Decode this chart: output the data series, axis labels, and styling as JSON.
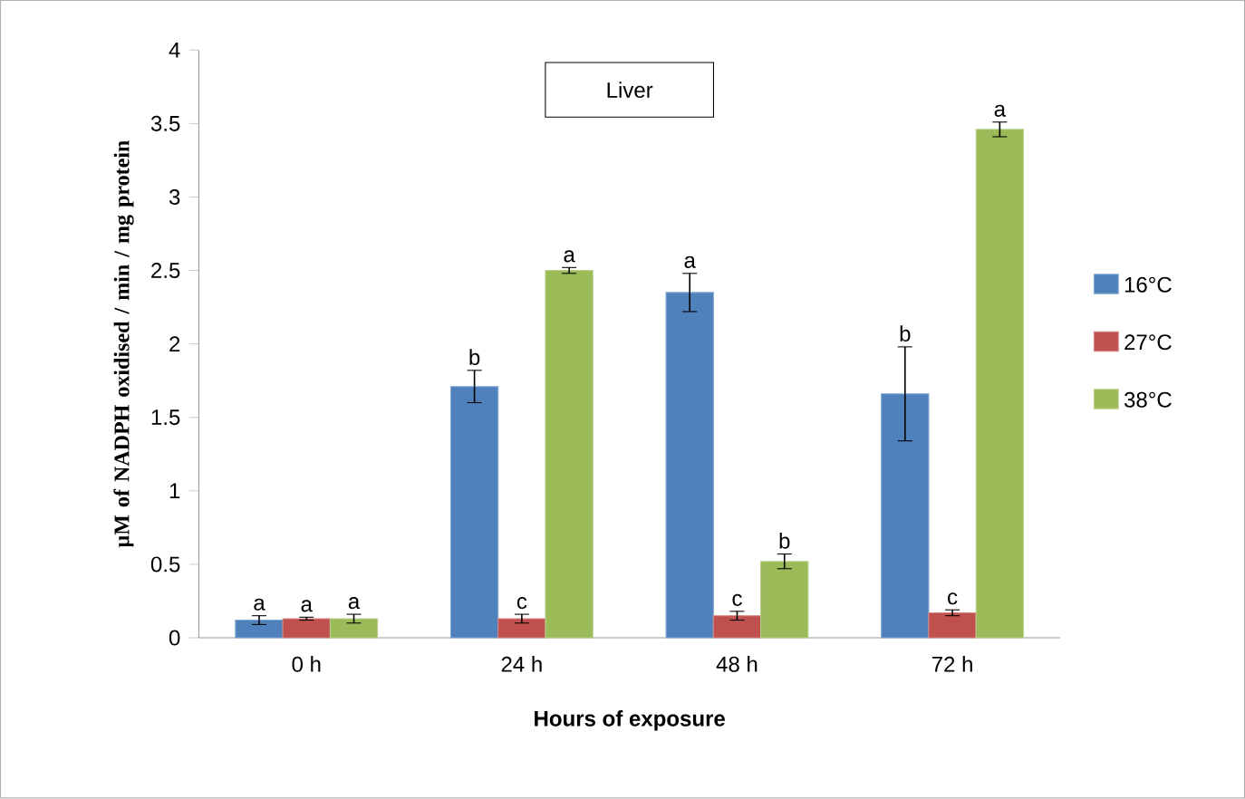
{
  "chart_data": {
    "type": "bar",
    "title": "Liver",
    "xlabel": "Hours of exposure",
    "ylabel": "µM of NADPH oxidised / min / mg protein",
    "categories": [
      "0 h",
      "24 h",
      "48 h",
      "72 h"
    ],
    "series": [
      {
        "name": "16°C",
        "color": "#4f81bd",
        "values": [
          0.12,
          1.71,
          2.35,
          1.66
        ],
        "errors": [
          0.03,
          0.11,
          0.13,
          0.32
        ],
        "value_labels": [
          "a",
          "b",
          "a",
          "b"
        ]
      },
      {
        "name": "27°C",
        "color": "#c0504d",
        "values": [
          0.13,
          0.13,
          0.15,
          0.17
        ],
        "errors": [
          0.01,
          0.03,
          0.03,
          0.02
        ],
        "value_labels": [
          "a",
          "c",
          "c",
          "c"
        ]
      },
      {
        "name": "38°C",
        "color": "#9bbb59",
        "values": [
          0.13,
          2.5,
          0.52,
          3.46
        ],
        "errors": [
          0.03,
          0.02,
          0.05,
          0.05
        ],
        "value_labels": [
          "a",
          "a",
          "b",
          "a"
        ]
      }
    ],
    "ylim": [
      0,
      4
    ],
    "yticks": [
      0,
      0.5,
      1,
      1.5,
      2,
      2.5,
      3,
      3.5,
      4
    ],
    "grid": false,
    "legend": "right"
  }
}
